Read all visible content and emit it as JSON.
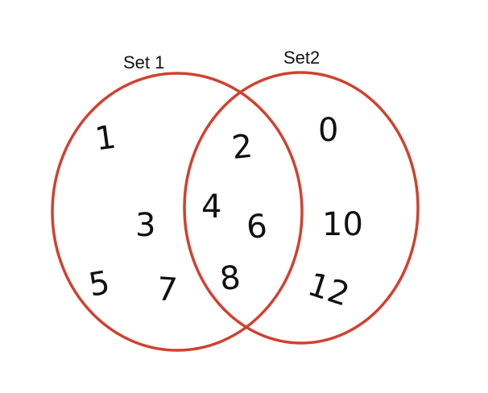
{
  "colors": {
    "circle_stroke": "#d2402f",
    "text": "#111111",
    "background": "#ffffff"
  },
  "sets": [
    {
      "label": "Set 1",
      "only": [
        "1",
        "3",
        "5",
        "7"
      ]
    },
    {
      "label": "Set2",
      "only": [
        "0",
        "10",
        "12"
      ]
    }
  ],
  "intersection": [
    "2",
    "4",
    "6",
    "8"
  ]
}
